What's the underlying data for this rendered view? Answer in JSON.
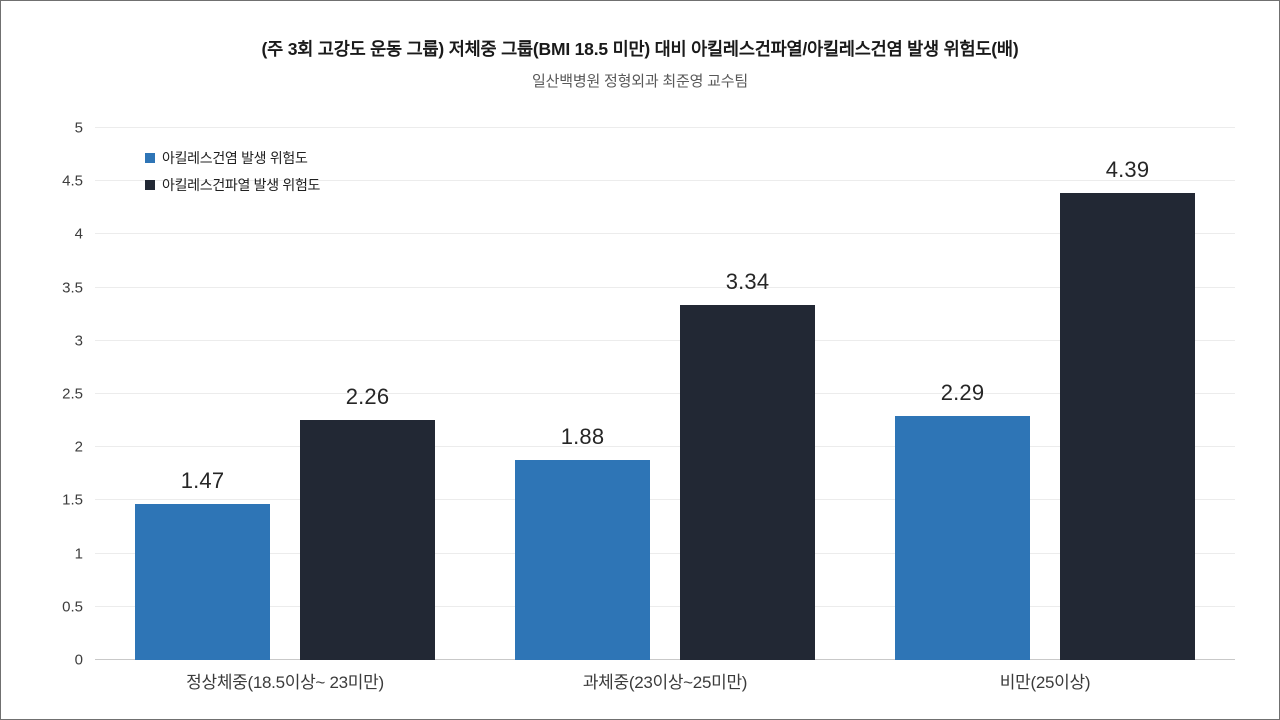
{
  "page": {
    "title": "(주 3회 고강도 운동 그룹) 저체중 그룹(BMI 18.5 미만) 대비 아킬레스건파열/아킬레스건염 발생 위험도(배)",
    "subtitle": "일산백병원 정형외과 최준영 교수팀"
  },
  "chart_data": {
    "type": "bar",
    "title": "(주 3회 고강도 운동 그룹) 저체중 그룹(BMI 18.5 미만) 대비 아킬레스건파열/아킬레스건염 발생 위험도(배)",
    "subtitle": "일산백병원 정형외과 최준영 교수팀",
    "categories": [
      "정상체중(18.5이상~ 23미만)",
      "과체중(23이상~25미만)",
      "비만(25이상)"
    ],
    "series": [
      {
        "name": "아킬레스건염 발생 위험도",
        "color": "#2e75b6",
        "values": [
          1.47,
          1.88,
          2.29
        ]
      },
      {
        "name": "아킬레스건파열 발생 위험도",
        "color": "#222834",
        "values": [
          2.26,
          3.34,
          4.39
        ]
      }
    ],
    "ylim": [
      0,
      5
    ],
    "ytick_step": 0.5,
    "grid": true,
    "legend_position": "top-left"
  }
}
